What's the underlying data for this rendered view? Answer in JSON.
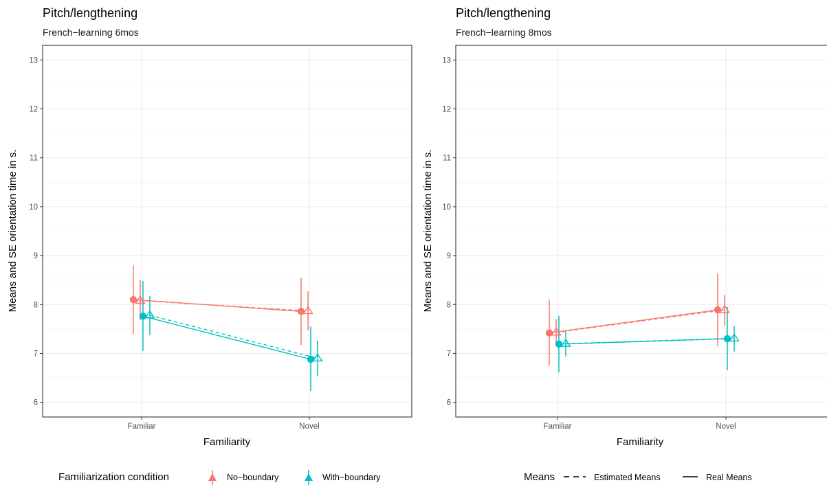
{
  "colors": {
    "no_boundary": "#F8766D",
    "with_boundary": "#00BFC4",
    "grid_major": "#ebebeb",
    "grid_minor": "#f3f3f3",
    "panel_border": "#333333"
  },
  "legends": {
    "condition": {
      "title": "Familiarization condition",
      "items": [
        "No−boundary",
        "With−boundary"
      ]
    },
    "means": {
      "title": "Means",
      "items": [
        "Estimated Means",
        "Real Means"
      ]
    }
  },
  "chart_data": [
    {
      "type": "line",
      "title": "Pitch/lengthening",
      "subtitle": "French−learning 6mos",
      "xlabel": "Familiarity",
      "ylabel": "Means and SE orientation time in s.",
      "categories": [
        "Familiar",
        "Novel"
      ],
      "ylim": [
        5.7,
        13.3
      ],
      "yticks": [
        6,
        7,
        8,
        9,
        10,
        11,
        12,
        13
      ],
      "grid": true,
      "series": [
        {
          "name": "No−boundary",
          "real": {
            "values": [
              8.1,
              7.86
            ],
            "lower": [
              7.4,
              7.17
            ],
            "upper": [
              8.8,
              8.55
            ]
          },
          "estimated": {
            "values": [
              8.08,
              7.87
            ],
            "lower": [
              7.68,
              7.47
            ],
            "upper": [
              8.5,
              8.27
            ]
          }
        },
        {
          "name": "With−boundary",
          "real": {
            "values": [
              7.76,
              6.88
            ],
            "lower": [
              7.05,
              6.23
            ],
            "upper": [
              8.48,
              7.55
            ]
          },
          "estimated": {
            "values": [
              7.78,
              6.9
            ],
            "lower": [
              7.37,
              6.54
            ],
            "upper": [
              8.18,
              7.26
            ]
          }
        }
      ]
    },
    {
      "type": "line",
      "title": "Pitch/lengthening",
      "subtitle": "French−learning 8mos",
      "xlabel": "Familiarity",
      "ylabel": "Means and SE orientation time in s.",
      "categories": [
        "Familiar",
        "Novel"
      ],
      "ylim": [
        5.7,
        13.3
      ],
      "yticks": [
        6,
        7,
        8,
        9,
        10,
        11,
        12,
        13
      ],
      "grid": true,
      "series": [
        {
          "name": "No−boundary",
          "real": {
            "values": [
              7.42,
              7.89
            ],
            "lower": [
              6.75,
              7.15
            ],
            "upper": [
              8.1,
              8.63
            ]
          },
          "estimated": {
            "values": [
              7.43,
              7.89
            ],
            "lower": [
              7.18,
              7.57
            ],
            "upper": [
              7.7,
              8.2
            ]
          }
        },
        {
          "name": "With−boundary",
          "real": {
            "values": [
              7.19,
              7.3
            ],
            "lower": [
              6.61,
              6.66
            ],
            "upper": [
              7.77,
              7.95
            ]
          },
          "estimated": {
            "values": [
              7.2,
              7.31
            ],
            "lower": [
              6.94,
              7.04
            ],
            "upper": [
              7.47,
              7.56
            ]
          }
        }
      ]
    }
  ]
}
